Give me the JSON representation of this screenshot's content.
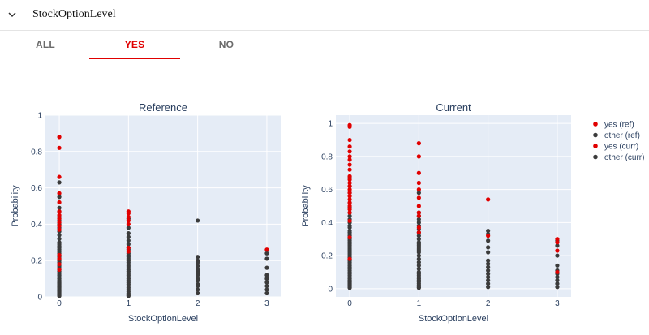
{
  "header": {
    "title": "StockOptionLevel"
  },
  "tabs": [
    {
      "label": "ALL",
      "active": false
    },
    {
      "label": "YES",
      "active": true
    },
    {
      "label": "NO",
      "active": false
    }
  ],
  "colors": {
    "yes": "#e10000",
    "other": "#3b3b3b",
    "panel": "#e5ecf6",
    "grid": "#ffffff",
    "tab_active": "#e00000"
  },
  "chart_data": [
    {
      "type": "scatter",
      "title": "Reference",
      "xlabel": "StockOptionLevel",
      "ylabel": "Probability",
      "xlim": [
        -0.2,
        3.2
      ],
      "ylim": [
        0,
        1
      ],
      "xticks": [
        0,
        1,
        2,
        3
      ],
      "yticks": [
        0,
        0.2,
        0.4,
        0.6,
        0.8,
        1
      ],
      "ytick_labels": [
        "0",
        "0.2",
        "0.4",
        "0.6",
        "0.8",
        "1"
      ],
      "series": [
        {
          "name": "yes (ref)",
          "color": "#e10000",
          "x": [
            0,
            0,
            0,
            0,
            0,
            0,
            0,
            0,
            0,
            0,
            0,
            0,
            0,
            0,
            0,
            1,
            1,
            1,
            1,
            1,
            1,
            1,
            3
          ],
          "y": [
            0.88,
            0.82,
            0.66,
            0.57,
            0.52,
            0.47,
            0.45,
            0.43,
            0.41,
            0.39,
            0.37,
            0.23,
            0.21,
            0.18,
            0.15,
            0.47,
            0.46,
            0.44,
            0.42,
            0.4,
            0.27,
            0.25,
            0.26
          ]
        },
        {
          "name": "other (ref)",
          "color": "#3b3b3b",
          "x": [
            0,
            0,
            0,
            0,
            0,
            0,
            0,
            0,
            0,
            0,
            0,
            0,
            0,
            0,
            0,
            0,
            0,
            0,
            0,
            0,
            0,
            0,
            0,
            0,
            0,
            0,
            0,
            0,
            0,
            0,
            0,
            0,
            0,
            0,
            0,
            0,
            0,
            0,
            0,
            0,
            0,
            0,
            0,
            0,
            0,
            0,
            0,
            0,
            0,
            0,
            1,
            1,
            1,
            1,
            1,
            1,
            1,
            1,
            1,
            1,
            1,
            1,
            1,
            1,
            1,
            1,
            1,
            1,
            1,
            1,
            1,
            1,
            1,
            1,
            1,
            1,
            1,
            1,
            1,
            1,
            1,
            1,
            1,
            2,
            2,
            2,
            2,
            2,
            2,
            2,
            2,
            2,
            2,
            2,
            2,
            2,
            2,
            2,
            3,
            3,
            3,
            3,
            3,
            3,
            3,
            3,
            3
          ],
          "y": [
            0.63,
            0.55,
            0.49,
            0.47,
            0.44,
            0.42,
            0.4,
            0.38,
            0.36,
            0.34,
            0.32,
            0.3,
            0.29,
            0.28,
            0.27,
            0.26,
            0.25,
            0.24,
            0.23,
            0.22,
            0.21,
            0.2,
            0.19,
            0.18,
            0.17,
            0.16,
            0.15,
            0.14,
            0.13,
            0.12,
            0.11,
            0.1,
            0.09,
            0.085,
            0.08,
            0.075,
            0.07,
            0.065,
            0.06,
            0.055,
            0.05,
            0.045,
            0.04,
            0.035,
            0.03,
            0.025,
            0.02,
            0.015,
            0.01,
            0.005,
            0.43,
            0.38,
            0.35,
            0.33,
            0.31,
            0.29,
            0.27,
            0.26,
            0.24,
            0.23,
            0.22,
            0.21,
            0.2,
            0.19,
            0.18,
            0.17,
            0.16,
            0.15,
            0.14,
            0.13,
            0.12,
            0.11,
            0.1,
            0.09,
            0.08,
            0.07,
            0.06,
            0.05,
            0.04,
            0.03,
            0.02,
            0.01,
            0.005,
            0.42,
            0.22,
            0.2,
            0.19,
            0.17,
            0.15,
            0.14,
            0.13,
            0.12,
            0.1,
            0.09,
            0.07,
            0.06,
            0.04,
            0.02,
            0.24,
            0.21,
            0.16,
            0.12,
            0.1,
            0.08,
            0.06,
            0.04,
            0.02
          ]
        }
      ]
    },
    {
      "type": "scatter",
      "title": "Current",
      "xlabel": "StockOptionLevel",
      "ylabel": "Probability",
      "xlim": [
        -0.2,
        3.2
      ],
      "ylim": [
        -0.05,
        1.05
      ],
      "xticks": [
        0,
        1,
        2,
        3
      ],
      "yticks": [
        0,
        0.2,
        0.4,
        0.6,
        0.8,
        1
      ],
      "ytick_labels": [
        "0",
        "0.2",
        "0.4",
        "0.6",
        "0.8",
        "1"
      ],
      "series": [
        {
          "name": "yes (curr)",
          "color": "#e10000",
          "x": [
            0,
            0,
            0,
            0,
            0,
            0,
            0,
            0,
            0,
            0,
            0,
            0,
            0,
            0,
            0,
            0,
            0,
            0,
            0,
            0,
            0,
            0,
            0,
            0,
            1,
            1,
            1,
            1,
            1,
            1,
            1,
            1,
            1,
            1,
            1,
            2,
            2,
            3,
            3,
            3,
            3
          ],
          "y": [
            0.99,
            0.98,
            0.9,
            0.86,
            0.83,
            0.8,
            0.78,
            0.75,
            0.72,
            0.68,
            0.66,
            0.64,
            0.62,
            0.6,
            0.58,
            0.56,
            0.54,
            0.52,
            0.5,
            0.48,
            0.46,
            0.41,
            0.31,
            0.18,
            0.88,
            0.8,
            0.7,
            0.64,
            0.6,
            0.55,
            0.5,
            0.46,
            0.44,
            0.37,
            0.34,
            0.54,
            0.32,
            0.3,
            0.28,
            0.23,
            0.1
          ]
        },
        {
          "name": "other (curr)",
          "color": "#3b3b3b",
          "x": [
            0,
            0,
            0,
            0,
            0,
            0,
            0,
            0,
            0,
            0,
            0,
            0,
            0,
            0,
            0,
            0,
            0,
            0,
            0,
            0,
            0,
            0,
            0,
            0,
            0,
            0,
            0,
            0,
            0,
            0,
            0,
            0,
            0,
            0,
            0,
            0,
            0,
            0,
            0,
            0,
            0,
            0,
            0,
            0,
            0,
            0,
            0,
            0,
            0,
            0,
            1,
            1,
            1,
            1,
            1,
            1,
            1,
            1,
            1,
            1,
            1,
            1,
            1,
            1,
            1,
            1,
            1,
            1,
            1,
            1,
            1,
            1,
            1,
            1,
            1,
            1,
            1,
            1,
            1,
            1,
            1,
            1,
            1,
            2,
            2,
            2,
            2,
            2,
            2,
            2,
            2,
            2,
            2,
            2,
            2,
            2,
            2,
            3,
            3,
            3,
            3,
            3,
            3,
            3,
            3,
            3,
            3
          ],
          "y": [
            0.67,
            0.62,
            0.58,
            0.52,
            0.49,
            0.46,
            0.44,
            0.42,
            0.4,
            0.38,
            0.37,
            0.35,
            0.34,
            0.33,
            0.32,
            0.31,
            0.3,
            0.29,
            0.28,
            0.27,
            0.26,
            0.25,
            0.24,
            0.23,
            0.22,
            0.21,
            0.2,
            0.19,
            0.18,
            0.17,
            0.16,
            0.15,
            0.14,
            0.13,
            0.12,
            0.11,
            0.1,
            0.09,
            0.08,
            0.07,
            0.06,
            0.05,
            0.045,
            0.04,
            0.035,
            0.03,
            0.025,
            0.02,
            0.01,
            0.005,
            0.58,
            0.46,
            0.44,
            0.42,
            0.4,
            0.38,
            0.36,
            0.34,
            0.32,
            0.3,
            0.28,
            0.27,
            0.26,
            0.25,
            0.24,
            0.23,
            0.22,
            0.2,
            0.18,
            0.16,
            0.14,
            0.12,
            0.1,
            0.09,
            0.08,
            0.07,
            0.06,
            0.05,
            0.04,
            0.03,
            0.02,
            0.01,
            0.005,
            0.35,
            0.33,
            0.29,
            0.25,
            0.22,
            0.17,
            0.15,
            0.13,
            0.11,
            0.09,
            0.07,
            0.05,
            0.03,
            0.01,
            0.29,
            0.26,
            0.2,
            0.14,
            0.11,
            0.09,
            0.07,
            0.05,
            0.03,
            0.01
          ]
        }
      ]
    }
  ],
  "legend": {
    "position": "right",
    "items": [
      "yes (ref)",
      "other (ref)",
      "yes (curr)",
      "other (curr)"
    ]
  }
}
